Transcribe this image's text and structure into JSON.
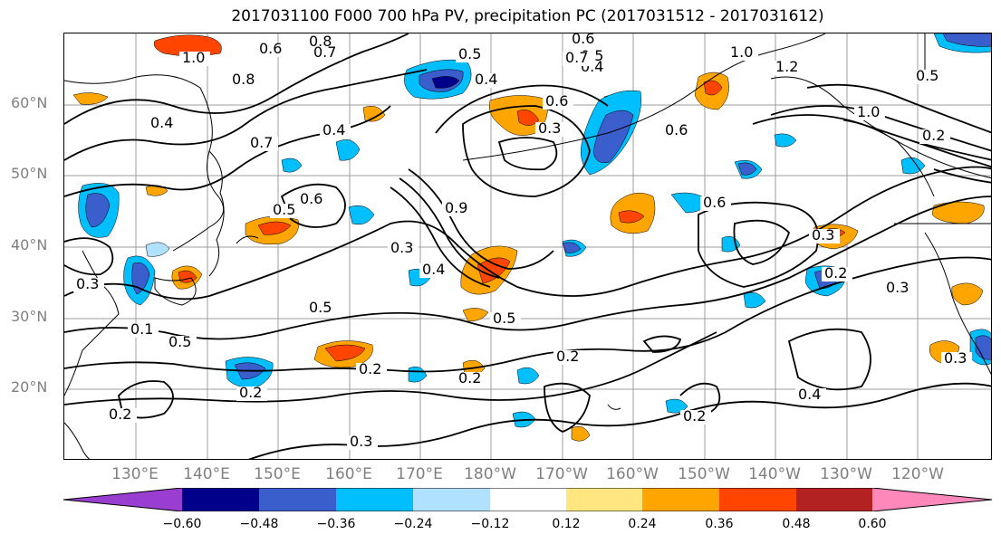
{
  "title": "2017031100 F000 700 hPa PV, precipitation PC (2017031512 - 2017031612)",
  "lat_labels": [
    "60°N",
    "50°N",
    "40°N",
    "30°N",
    "20°N"
  ],
  "lon_labels": [
    "130°E",
    "140°E",
    "150°E",
    "160°E",
    "170°E",
    "180°W",
    "170°W",
    "160°W",
    "150°W",
    "140°W",
    "130°W",
    "120°W"
  ],
  "colorbar": {
    "ticks": [
      "−0.60",
      "−0.48",
      "−0.36",
      "−0.24",
      "−0.12",
      "0.12",
      "0.24",
      "0.36",
      "0.48",
      "0.60"
    ],
    "colors": [
      "#9a3dd1",
      "#00008b",
      "#3a5fcd",
      "#00bfff",
      "#b0e2ff",
      "#ffffff",
      "#ffe680",
      "#ffa500",
      "#ff4500",
      "#b22222",
      "#ff88bb"
    ]
  },
  "contour_labels": [
    "0.8",
    "0.6",
    "0.7",
    "0.5",
    "0.6",
    "0.5",
    "0.4",
    "1.0",
    "1.2",
    "0.8",
    "1.0",
    "0.5",
    "0.4",
    "0.3",
    "0.4",
    "0.7",
    "0.4",
    "0.6",
    "0.6",
    "0.9",
    "0.3",
    "0.5",
    "0.5",
    "0.4",
    "0.6",
    "1.0",
    "0.3",
    "0.2",
    "0.3",
    "0.3",
    "0.5",
    "0.5",
    "0.2",
    "0.2",
    "0.2",
    "0.2",
    "0.4",
    "0.3",
    "0.2",
    "0.3",
    "0.2",
    "0.1",
    "0.6",
    "0.7",
    "0.2"
  ]
}
